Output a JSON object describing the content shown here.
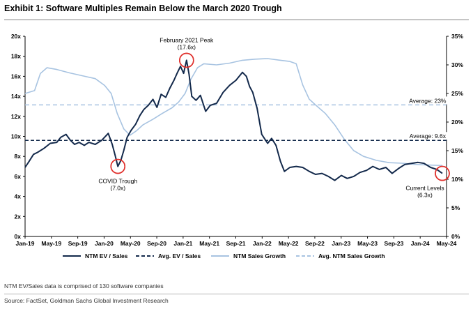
{
  "header": {
    "title": "Exhibit 1: Software Multiples Remain Below the March 2020 Trough"
  },
  "footnotes": {
    "note": "NTM EV/Sales data is comprised of 130 software companies",
    "source": "Source: FactSet, Goldman Sachs Global Investment Research"
  },
  "colors": {
    "ev_sales": "#13294b",
    "sales_growth": "#a7c3e1",
    "marker": "#e0302c"
  },
  "chart_data": {
    "type": "line",
    "x_tick_labels": [
      "Jan-19",
      "May-19",
      "Sep-19",
      "Jan-20",
      "May-20",
      "Sep-20",
      "Jan-21",
      "May-21",
      "Sep-21",
      "Jan-22",
      "May-22",
      "Sep-22",
      "Jan-23",
      "May-23",
      "Sep-23",
      "Jan-24",
      "May-24"
    ],
    "xlim": [
      "2019-01-01",
      "2024-06-30"
    ],
    "y_left": {
      "ylim": [
        0,
        20
      ],
      "ticks": [
        "0x",
        "2x",
        "4x",
        "6x",
        "8x",
        "10x",
        "12x",
        "14x",
        "16x",
        "18x",
        "20x"
      ]
    },
    "y_right": {
      "ylim": [
        0,
        35
      ],
      "ticks": [
        "0%",
        "5%",
        "10%",
        "15%",
        "20%",
        "25%",
        "30%",
        "35%"
      ]
    },
    "legend_position": "bottom",
    "series": [
      {
        "name": "NTM EV / Sales",
        "axis": "left",
        "style": "solid",
        "color": "#13294b",
        "points": [
          [
            "2019-01-01",
            6.9
          ],
          [
            "2019-01-20",
            7.5
          ],
          [
            "2019-02-10",
            8.2
          ],
          [
            "2019-03-01",
            8.4
          ],
          [
            "2019-04-01",
            8.8
          ],
          [
            "2019-05-01",
            9.3
          ],
          [
            "2019-06-01",
            9.4
          ],
          [
            "2019-06-20",
            9.9
          ],
          [
            "2019-07-15",
            10.2
          ],
          [
            "2019-08-05",
            9.6
          ],
          [
            "2019-08-25",
            9.2
          ],
          [
            "2019-09-15",
            9.4
          ],
          [
            "2019-10-10",
            9.1
          ],
          [
            "2019-11-01",
            9.4
          ],
          [
            "2019-12-01",
            9.2
          ],
          [
            "2020-01-01",
            9.6
          ],
          [
            "2020-02-01",
            10.3
          ],
          [
            "2020-02-20",
            9.2
          ],
          [
            "2020-03-05",
            8.1
          ],
          [
            "2020-03-18",
            7.0
          ],
          [
            "2020-04-01",
            7.6
          ],
          [
            "2020-04-15",
            8.6
          ],
          [
            "2020-05-01",
            9.9
          ],
          [
            "2020-05-20",
            10.6
          ],
          [
            "2020-06-10",
            11.2
          ],
          [
            "2020-07-01",
            12.1
          ],
          [
            "2020-07-20",
            12.7
          ],
          [
            "2020-08-10",
            13.1
          ],
          [
            "2020-09-01",
            13.7
          ],
          [
            "2020-09-20",
            12.9
          ],
          [
            "2020-10-10",
            14.2
          ],
          [
            "2020-11-01",
            13.9
          ],
          [
            "2020-11-20",
            14.8
          ],
          [
            "2020-12-10",
            15.6
          ],
          [
            "2020-12-25",
            16.3
          ],
          [
            "2021-01-10",
            17.0
          ],
          [
            "2021-01-25",
            16.3
          ],
          [
            "2021-02-08",
            17.6
          ],
          [
            "2021-02-20",
            16.2
          ],
          [
            "2021-03-05",
            14.0
          ],
          [
            "2021-03-25",
            13.6
          ],
          [
            "2021-04-15",
            14.1
          ],
          [
            "2021-05-10",
            12.5
          ],
          [
            "2021-06-01",
            13.1
          ],
          [
            "2021-07-01",
            13.3
          ],
          [
            "2021-08-01",
            14.4
          ],
          [
            "2021-09-01",
            15.1
          ],
          [
            "2021-10-01",
            15.6
          ],
          [
            "2021-11-01",
            16.4
          ],
          [
            "2021-11-20",
            16.0
          ],
          [
            "2021-12-05",
            15.0
          ],
          [
            "2021-12-20",
            14.4
          ],
          [
            "2022-01-10",
            12.8
          ],
          [
            "2022-02-01",
            10.2
          ],
          [
            "2022-03-01",
            9.3
          ],
          [
            "2022-03-20",
            9.8
          ],
          [
            "2022-04-10",
            9.1
          ],
          [
            "2022-05-01",
            7.5
          ],
          [
            "2022-05-20",
            6.5
          ],
          [
            "2022-06-15",
            6.9
          ],
          [
            "2022-07-15",
            7.0
          ],
          [
            "2022-08-15",
            6.9
          ],
          [
            "2022-09-15",
            6.5
          ],
          [
            "2022-10-15",
            6.2
          ],
          [
            "2022-11-15",
            6.3
          ],
          [
            "2022-12-15",
            6.0
          ],
          [
            "2023-01-15",
            5.6
          ],
          [
            "2023-02-15",
            6.1
          ],
          [
            "2023-03-15",
            5.8
          ],
          [
            "2023-04-15",
            6.0
          ],
          [
            "2023-05-15",
            6.4
          ],
          [
            "2023-06-15",
            6.6
          ],
          [
            "2023-07-15",
            7.0
          ],
          [
            "2023-08-15",
            6.7
          ],
          [
            "2023-09-15",
            6.9
          ],
          [
            "2023-10-15",
            6.3
          ],
          [
            "2023-11-15",
            6.8
          ],
          [
            "2023-12-15",
            7.2
          ],
          [
            "2024-01-15",
            7.3
          ],
          [
            "2024-02-15",
            7.4
          ],
          [
            "2024-03-15",
            7.3
          ],
          [
            "2024-04-15",
            6.9
          ],
          [
            "2024-05-15",
            6.7
          ],
          [
            "2024-06-10",
            6.3
          ]
        ]
      },
      {
        "name": "Avg. EV / Sales",
        "axis": "left",
        "style": "dashed",
        "color": "#13294b",
        "points": [
          [
            "2019-01-01",
            9.6
          ],
          [
            "2024-06-30",
            9.6
          ]
        ]
      },
      {
        "name": "NTM Sales Growth",
        "axis": "right",
        "style": "solid",
        "color": "#a7c3e1",
        "points": [
          [
            "2019-01-01",
            25.0
          ],
          [
            "2019-02-15",
            25.5
          ],
          [
            "2019-03-15",
            28.5
          ],
          [
            "2019-04-15",
            29.5
          ],
          [
            "2019-06-01",
            29.2
          ],
          [
            "2019-08-01",
            28.6
          ],
          [
            "2019-10-01",
            28.1
          ],
          [
            "2019-12-01",
            27.6
          ],
          [
            "2020-01-15",
            26.4
          ],
          [
            "2020-02-15",
            25.0
          ],
          [
            "2020-03-15",
            21.5
          ],
          [
            "2020-04-15",
            18.8
          ],
          [
            "2020-05-15",
            17.7
          ],
          [
            "2020-06-15",
            18.5
          ],
          [
            "2020-07-15",
            19.5
          ],
          [
            "2020-09-01",
            20.5
          ],
          [
            "2020-10-15",
            21.5
          ],
          [
            "2020-12-01",
            22.5
          ],
          [
            "2021-01-01",
            23.5
          ],
          [
            "2021-02-01",
            25.0
          ],
          [
            "2021-03-01",
            27.5
          ],
          [
            "2021-04-01",
            29.5
          ],
          [
            "2021-05-01",
            30.2
          ],
          [
            "2021-07-01",
            30.0
          ],
          [
            "2021-09-01",
            30.3
          ],
          [
            "2021-11-01",
            30.8
          ],
          [
            "2022-01-01",
            31.0
          ],
          [
            "2022-03-01",
            31.1
          ],
          [
            "2022-05-01",
            30.8
          ],
          [
            "2022-06-15",
            30.6
          ],
          [
            "2022-07-15",
            30.2
          ],
          [
            "2022-08-15",
            26.5
          ],
          [
            "2022-09-15",
            24.0
          ],
          [
            "2022-10-15",
            23.0
          ],
          [
            "2022-12-01",
            21.5
          ],
          [
            "2023-01-15",
            19.5
          ],
          [
            "2023-03-01",
            17.0
          ],
          [
            "2023-04-15",
            15.0
          ],
          [
            "2023-06-01",
            14.0
          ],
          [
            "2023-08-01",
            13.3
          ],
          [
            "2023-10-01",
            12.9
          ],
          [
            "2023-12-01",
            12.8
          ],
          [
            "2024-02-01",
            12.6
          ],
          [
            "2024-04-01",
            12.5
          ],
          [
            "2024-06-10",
            12.4
          ]
        ]
      },
      {
        "name": "Avg. NTM Sales Growth",
        "axis": "right",
        "style": "dashed",
        "color": "#a7c3e1",
        "points": [
          [
            "2019-01-01",
            23.0
          ],
          [
            "2024-06-30",
            23.0
          ]
        ]
      }
    ],
    "annotations": [
      {
        "text": "Average: 23%",
        "axis": "right",
        "y": 23.0,
        "x": "2024-04-01"
      },
      {
        "text": "Average: 9.6x",
        "axis": "left",
        "y": 9.6,
        "x": "2024-04-01"
      },
      {
        "line1": "COVID Trough",
        "line2": "(7.0x)",
        "x": "2020-03-18",
        "y": 7.0,
        "label_pos": "below",
        "circled": true
      },
      {
        "line1": "February 2021 Peak",
        "line2": "(17.6x)",
        "x": "2021-02-08",
        "y": 17.6,
        "label_pos": "above",
        "circled": true
      },
      {
        "line1": "Current Levels",
        "line2": "(6.3x)",
        "x": "2024-06-10",
        "y": 6.3,
        "label_pos": "below",
        "circled": true
      }
    ]
  }
}
